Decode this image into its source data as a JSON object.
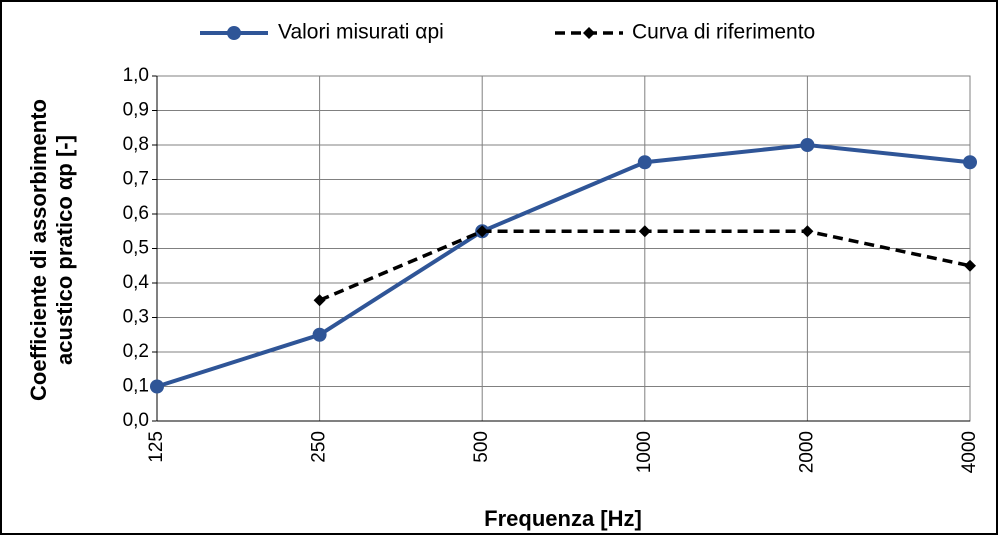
{
  "chart_data": {
    "type": "line",
    "xlabel": "Frequenza [Hz]",
    "ylabel": [
      "Coefficiente di assorbimento",
      "acustico pratico αp [-]"
    ],
    "categories": [
      "125",
      "250",
      "500",
      "1000",
      "2000",
      "4000"
    ],
    "series": [
      {
        "name": "Valori misurati αpi",
        "color": "#2f5597",
        "line_style": "solid",
        "marker": "circle",
        "values": [
          0.1,
          0.25,
          0.55,
          0.75,
          0.8,
          0.75
        ]
      },
      {
        "name": "Curva di riferimento",
        "color": "#000000",
        "line_style": "dashed",
        "marker": "diamond",
        "values": [
          null,
          0.35,
          0.55,
          0.55,
          0.55,
          0.45
        ]
      }
    ],
    "ylim": [
      0,
      1
    ],
    "yticks": [
      {
        "value": 0,
        "label": "0,0"
      },
      {
        "value": 0.1,
        "label": "0,1"
      },
      {
        "value": 0.2,
        "label": "0,2"
      },
      {
        "value": 0.3,
        "label": "0,3"
      },
      {
        "value": 0.4,
        "label": "0,4"
      },
      {
        "value": 0.5,
        "label": "0,5"
      },
      {
        "value": 0.6,
        "label": "0,6"
      },
      {
        "value": 0.7,
        "label": "0,7"
      },
      {
        "value": 0.8,
        "label": "0,8"
      },
      {
        "value": 0.9,
        "label": "0,9"
      },
      {
        "value": 1,
        "label": "1,0"
      }
    ],
    "grid": true,
    "legend": "top"
  }
}
